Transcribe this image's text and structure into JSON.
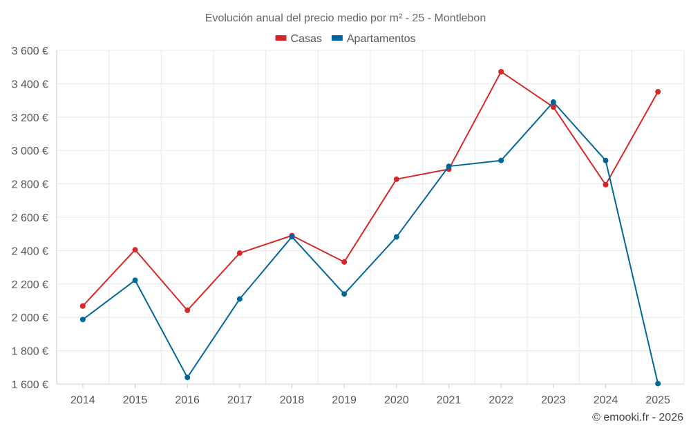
{
  "chart_data": {
    "type": "line",
    "title": "Evolución anual del precio medio por m² - 25 - Montlebon",
    "x": [
      "2014",
      "2015",
      "2016",
      "2017",
      "2018",
      "2019",
      "2020",
      "2021",
      "2022",
      "2023",
      "2024",
      "2025"
    ],
    "series": [
      {
        "name": "Casas",
        "color": "#d62728",
        "values": [
          2068,
          2405,
          2042,
          2385,
          2490,
          2332,
          2828,
          2888,
          3472,
          3260,
          2795,
          3352
        ]
      },
      {
        "name": "Apartamentos",
        "color": "#006699",
        "values": [
          1987,
          2222,
          1640,
          2110,
          2483,
          2140,
          2482,
          2905,
          2940,
          3290,
          2940,
          1603
        ]
      }
    ],
    "ylim": [
      1600,
      3600
    ],
    "yticks": [
      1600,
      1800,
      2000,
      2200,
      2400,
      2600,
      2800,
      3000,
      3200,
      3400,
      3600
    ],
    "ytick_labels": [
      "1 600 €",
      "1 800 €",
      "2 000 €",
      "2 200 €",
      "2 400 €",
      "2 600 €",
      "2 800 €",
      "3 000 €",
      "3 200 €",
      "3 400 €",
      "3 600 €"
    ],
    "xlabel": "",
    "ylabel": "",
    "grid": true,
    "legend_position": "top-center",
    "credit": "© emooki.fr - 2026"
  }
}
